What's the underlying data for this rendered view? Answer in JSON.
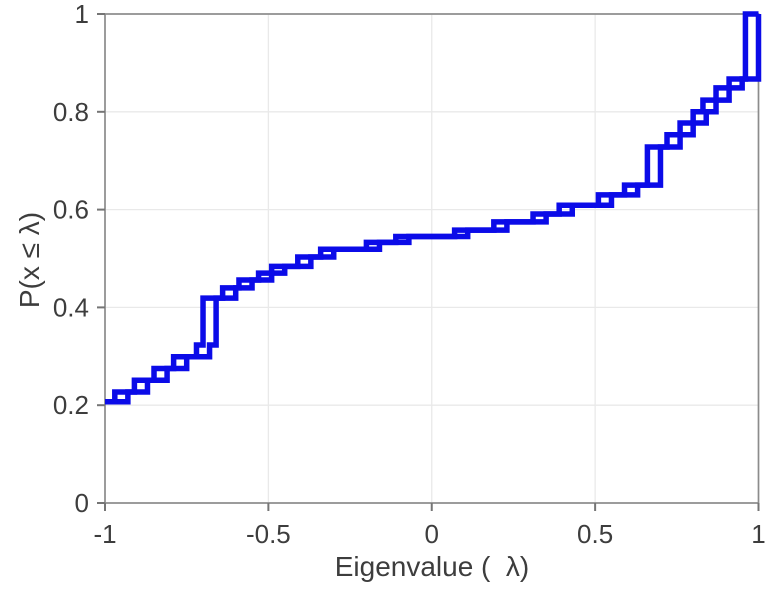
{
  "figure": {
    "background": "#ffffff"
  },
  "chart_data": {
    "type": "line",
    "subtype": "empirical-cdf-stairs",
    "title": "",
    "xlabel": "Eigenvalue (  λ)",
    "ylabel": "P(x ≤ λ)",
    "xlim": [
      -1,
      1
    ],
    "ylim": [
      0,
      1
    ],
    "xticks": {
      "values": [
        -1,
        -0.5,
        0,
        0.5,
        1
      ],
      "labels": [
        "-1",
        "-0.5",
        "0",
        "0.5",
        "1"
      ]
    },
    "yticks": {
      "values": [
        0,
        0.2,
        0.4,
        0.6,
        0.8,
        1
      ],
      "labels": [
        "0",
        "0.2",
        "0.4",
        "0.6",
        "0.8",
        "1"
      ]
    },
    "grid": true,
    "legend": "none",
    "line_color": "#0b0be8",
    "line_width": 5.5,
    "axis_color": "#8c8c8c",
    "grid_color": "#e9e9e9",
    "tick_color": "#757575",
    "text_color": "#3d3d3d",
    "start_point": [
      -1,
      0.207
    ],
    "end_x": 1,
    "duplicate_curve_x_offset": 0.04,
    "steps": [
      [
        -0.97,
        0.227
      ],
      [
        -0.91,
        0.251
      ],
      [
        -0.85,
        0.275
      ],
      [
        -0.79,
        0.299
      ],
      [
        -0.72,
        0.323
      ],
      [
        -0.7,
        0.419
      ],
      [
        -0.64,
        0.44
      ],
      [
        -0.59,
        0.456
      ],
      [
        -0.53,
        0.47
      ],
      [
        -0.49,
        0.484
      ],
      [
        -0.41,
        0.503
      ],
      [
        -0.34,
        0.519
      ],
      [
        -0.2,
        0.533
      ],
      [
        -0.11,
        0.545
      ],
      [
        0.07,
        0.558
      ],
      [
        0.19,
        0.575
      ],
      [
        0.31,
        0.591
      ],
      [
        0.39,
        0.609
      ],
      [
        0.51,
        0.63
      ],
      [
        0.59,
        0.65
      ],
      [
        0.66,
        0.728
      ],
      [
        0.72,
        0.753
      ],
      [
        0.76,
        0.777
      ],
      [
        0.8,
        0.8
      ],
      [
        0.83,
        0.824
      ],
      [
        0.87,
        0.849
      ],
      [
        0.91,
        0.867
      ],
      [
        0.96,
        1.0
      ]
    ]
  }
}
